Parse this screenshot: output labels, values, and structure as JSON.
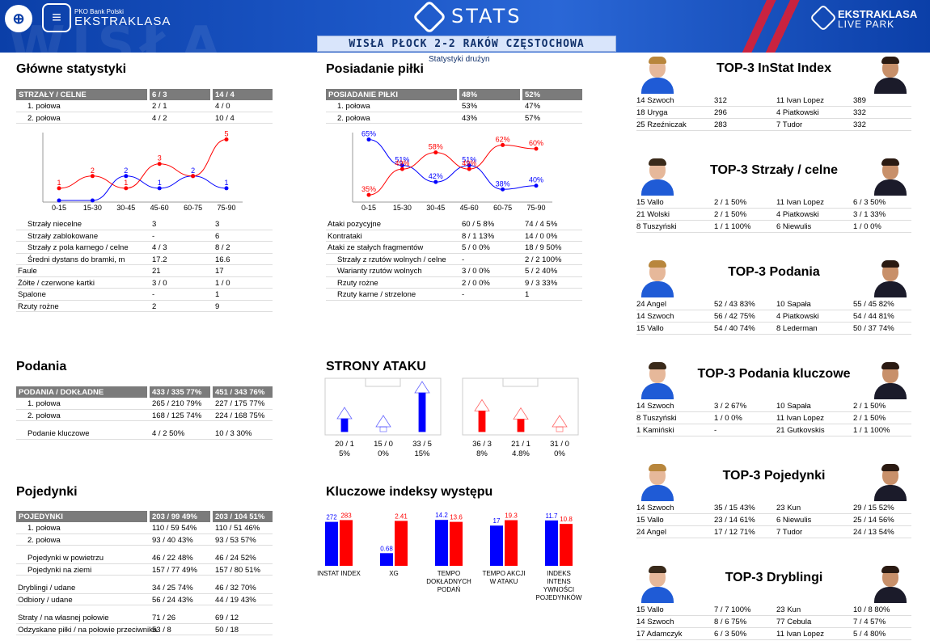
{
  "header": {
    "pko_sub": "PKO Bank Polski",
    "league": "EKSTRAKLASA",
    "stats_label": "STATS",
    "livepark_top": "EKSTRAKLASA",
    "livepark_bot": "LIVE PARK",
    "match": "WISŁA PŁOCK 2-2 RAKÓW CZĘSTOCHOWA",
    "subtitle": "Statystyki drużyn",
    "colors": {
      "blue": "#0000ff",
      "red": "#ff0000",
      "header": "#1c57c7"
    }
  },
  "glowne": {
    "title": "Główne statystyki",
    "head": [
      "STRZAŁY / CELNE",
      "6 / 3",
      "14 / 4"
    ],
    "halves": [
      [
        "1. połowa",
        "2 / 1",
        "4 / 0"
      ],
      [
        "2. połowa",
        "4 / 2",
        "10 / 4"
      ]
    ],
    "chart": {
      "x": [
        "0-15",
        "15-30",
        "30-45",
        "45-60",
        "60-75",
        "75-90"
      ],
      "blue": [
        0,
        0,
        2,
        1,
        2,
        1
      ],
      "red": [
        1,
        2,
        1,
        3,
        2,
        5
      ],
      "blue_labels": [
        "",
        "",
        "2",
        "1",
        "2",
        "1"
      ],
      "red_labels": [
        "1",
        "2",
        "1",
        "3",
        "",
        "5"
      ]
    },
    "rows": [
      [
        "Strzały niecelne",
        "3",
        "3",
        1
      ],
      [
        "Strzały zablokowane",
        "-",
        "6",
        1
      ],
      [
        "Strzały z pola karnego / celne",
        "4 / 3",
        "8 / 2",
        1
      ],
      [
        "Średni dystans do bramki, m",
        "17.2",
        "16.6",
        1
      ],
      [
        "Faule",
        "21",
        "17",
        0
      ],
      [
        "Żółte / czerwone kartki",
        "3 / 0",
        "1 / 0",
        0
      ],
      [
        "Spalone",
        "-",
        "1",
        0
      ],
      [
        "Rzuty rożne",
        "2",
        "9",
        0
      ]
    ]
  },
  "posiadanie": {
    "title": "Posiadanie piłki",
    "head": [
      "POSIADANIE PIŁKI",
      "48%",
      "52%"
    ],
    "halves": [
      [
        "1. połowa",
        "53%",
        "47%"
      ],
      [
        "2. połowa",
        "43%",
        "57%"
      ]
    ],
    "chart": {
      "x": [
        "0-15",
        "15-30",
        "30-45",
        "45-60",
        "60-75",
        "75-90"
      ],
      "blue": [
        65,
        51,
        42,
        51,
        38,
        40
      ],
      "red": [
        35,
        49,
        58,
        49,
        62,
        60
      ],
      "blue_labels": [
        "65%",
        "51%",
        "42%",
        "51%",
        "38%",
        "40%"
      ],
      "red_labels": [
        "35%",
        "49%",
        "58%",
        "49%",
        "62%",
        "60%"
      ]
    },
    "rows": [
      [
        "Ataki pozycyjne",
        "60 / 5  8%",
        "74 / 4  5%",
        0
      ],
      [
        "Kontrataki",
        "8 / 1    13%",
        "14 / 0  0%",
        0
      ],
      [
        "Ataki ze stałych fragmentów",
        "5 / 0    0%",
        "18 / 9  50%",
        0
      ],
      [
        "Strzały z rzutów wolnych / celne",
        "-",
        "2 / 2    100%",
        1
      ],
      [
        "Warianty rzutów wolnych",
        "3 / 0    0%",
        "5 / 2    40%",
        1
      ],
      [
        "Rzuty rożne",
        "2 / 0    0%",
        "9 / 3    33%",
        1
      ],
      [
        "Rzuty karne / strzelone",
        "-",
        "1",
        1
      ]
    ]
  },
  "podania": {
    "title": "Podania",
    "head": [
      "PODANIA / DOKŁADNE",
      "433 / 335 77%",
      "451 / 343 76%"
    ],
    "rows": [
      [
        "1. połowa",
        "265 / 210 79%",
        "227 / 175 77%",
        1
      ],
      [
        "2. połowa",
        "168 / 125 74%",
        "224 / 168 75%",
        1
      ]
    ],
    "key": [
      "Podanie kluczowe",
      "4 / 2        50%",
      "10 / 3       30%"
    ]
  },
  "strony": {
    "title": "STRONY ATAKU",
    "blue": [
      {
        "v": "20 / 1",
        "p": "5%",
        "pct": 5
      },
      {
        "v": "15 / 0",
        "p": "0%",
        "pct": 0
      },
      {
        "v": "33 / 5",
        "p": "15%",
        "pct": 15
      }
    ],
    "red": [
      {
        "v": "36 / 3",
        "p": "8%",
        "pct": 8
      },
      {
        "v": "21 / 1",
        "p": "4.8%",
        "pct": 4.8
      },
      {
        "v": "31 / 0",
        "p": "0%",
        "pct": 0
      }
    ]
  },
  "pojedynki": {
    "title": "Pojedynki",
    "head": [
      "POJEDYNKI",
      "203 / 99 49%",
      "203 / 104 51%"
    ],
    "groups": [
      [
        [
          "1. połowa",
          "110 / 59 54%",
          "110 / 51  46%",
          1
        ],
        [
          "2. połowa",
          "93 / 40   43%",
          "93 / 53    57%",
          1
        ]
      ],
      [
        [
          "Pojedynki w powietrzu",
          "46 / 22   48%",
          "46 / 24    52%",
          1
        ],
        [
          "Pojedynki na ziemi",
          "157 / 77 49%",
          "157 / 80  51%",
          1
        ]
      ],
      [
        [
          "Dryblingi / udane",
          "34 / 25   74%",
          "46 / 32    70%",
          0
        ],
        [
          "Odbiory / udane",
          "56 / 24   43%",
          "44 / 19    43%",
          0
        ]
      ],
      [
        [
          "Straty / na własnej połowie",
          "71 / 26",
          "69 / 12",
          0
        ],
        [
          "Odzyskane piłki / na połowie przeciwnika",
          "53 / 8",
          "50 / 18",
          0
        ]
      ]
    ]
  },
  "indeksy": {
    "title": "Kluczowe indeksy występu",
    "items": [
      {
        "label": "INSTAT INDEX",
        "blue": 272,
        "red": 283,
        "bl": "272",
        "rl": "283",
        "max": 300
      },
      {
        "label": "XG",
        "blue": 0.68,
        "red": 2.41,
        "bl": "0.68",
        "rl": "2.41",
        "max": 2.6
      },
      {
        "label": "TEMPO DOKŁADNYCH PODAŃ",
        "blue": 14.2,
        "red": 13.6,
        "bl": "14.2",
        "rl": "13.6",
        "max": 15
      },
      {
        "label": "TEMPO AKCJI W ATAKU",
        "blue": 17,
        "red": 19.3,
        "bl": "17",
        "rl": "19.3",
        "max": 20.5
      },
      {
        "label": "INDEKS INTENS YWNOŚCI POJEDYNKÓW",
        "blue": 11.7,
        "red": 10.8,
        "bl": "11.7",
        "rl": "10.8",
        "max": 12.5
      }
    ]
  },
  "top": [
    {
      "title": "TOP-3 InStat Index",
      "rows": [
        [
          "14 Szwoch",
          "312",
          "11 Ivan Lopez",
          "389"
        ],
        [
          "18 Uryga",
          "296",
          "4  Piatkowski",
          "332"
        ],
        [
          "25 Rzeźniczak",
          "283",
          "7  Tudor",
          "332"
        ]
      ]
    },
    {
      "title": "TOP-3 Strzały / celne",
      "rows": [
        [
          "15 Vallo",
          "2 / 1  50%",
          "11 Ivan Lopez",
          "6 / 3  50%"
        ],
        [
          "21 Wolski",
          "2 / 1  50%",
          "4  Piatkowski",
          "3 / 1  33%"
        ],
        [
          "8  Tuszyński",
          "1 / 1  100%",
          "6  Niewulis",
          "1 / 0  0%"
        ]
      ]
    },
    {
      "title": "TOP-3 Podania",
      "rows": [
        [
          "24 Angel",
          "52 / 43 83%",
          "10 Sapała",
          "55 / 45 82%"
        ],
        [
          "14 Szwoch",
          "56 / 42 75%",
          "4  Piatkowski",
          "54 / 44 81%"
        ],
        [
          "15 Vallo",
          "54 / 40 74%",
          "8  Lederman",
          "50 / 37 74%"
        ]
      ]
    },
    {
      "title": "TOP-3 Podania kluczowe",
      "rows": [
        [
          "14 Szwoch",
          "3 / 2  67%",
          "10 Sapała",
          "2 / 1  50%"
        ],
        [
          "8  Tuszyński",
          "1 / 0  0%",
          "11 Ivan Lopez",
          "2 / 1  50%"
        ],
        [
          "1  Kamiński",
          "-",
          "21 Gutkovskis",
          "1 / 1  100%"
        ]
      ]
    },
    {
      "title": "TOP-3 Pojedynki",
      "rows": [
        [
          "14 Szwoch",
          "35 / 15 43%",
          "23 Kun",
          "29 / 15 52%"
        ],
        [
          "15 Vallo",
          "23 / 14 61%",
          "6  Niewulis",
          "25 / 14 56%"
        ],
        [
          "24 Angel",
          "17 / 12 71%",
          "7  Tudor",
          "24 / 13 54%"
        ]
      ]
    },
    {
      "title": "TOP-3 Dryblingi",
      "rows": [
        [
          "15 Vallo",
          "7 / 7   100%",
          "23 Kun",
          "10 / 8  80%"
        ],
        [
          "14 Szwoch",
          "8 / 6   75%",
          "77 Cebula",
          "7 / 4    57%"
        ],
        [
          "17 Adamczyk",
          "6 / 3   50%",
          "11 Ivan Lopez",
          "5 / 4    80%"
        ]
      ]
    }
  ]
}
